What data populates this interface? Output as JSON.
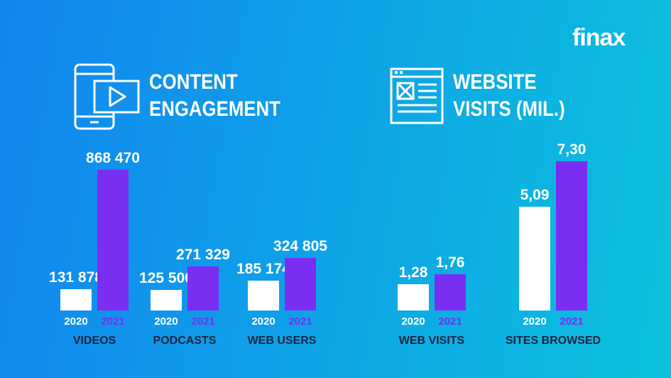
{
  "brand": "finax",
  "sections": [
    {
      "title_line1": "CONTENT",
      "title_line2": "ENGAGEMENT",
      "icon": "phone-video-icon"
    },
    {
      "title_line1": "WEBSITE",
      "title_line2": "VISITS (MIL.)",
      "icon": "browser-window-icon"
    }
  ],
  "colors": {
    "bar_2020": "#ffffff",
    "bar_2021": "#7a2ef2",
    "text": "#ffffff",
    "group_label": "#1a2540"
  },
  "chart_data": [
    {
      "type": "bar",
      "title": "CONTENT ENGAGEMENT",
      "categories": [
        "VIDEOS",
        "PODCASTS",
        "WEB USERS"
      ],
      "series": [
        {
          "name": "2020",
          "values": [
            131878,
            125500,
            185174
          ],
          "labels": [
            "131 878",
            "125 500",
            "185 174"
          ]
        },
        {
          "name": "2021",
          "values": [
            868470,
            271329,
            324805
          ],
          "labels": [
            "868 470",
            "271 329",
            "324 805"
          ]
        }
      ],
      "ylim": [
        0,
        868470
      ]
    },
    {
      "type": "bar",
      "title": "WEBSITE VISITS (MIL.)",
      "categories": [
        "WEB VISITS",
        "SITES BROWSED"
      ],
      "series": [
        {
          "name": "2020",
          "values": [
            1.28,
            5.09
          ],
          "labels": [
            "1,28",
            "5,09"
          ]
        },
        {
          "name": "2021",
          "values": [
            1.76,
            7.3
          ],
          "labels": [
            "1,76",
            "7,30"
          ]
        }
      ],
      "ylim": [
        0,
        7.3
      ]
    }
  ]
}
